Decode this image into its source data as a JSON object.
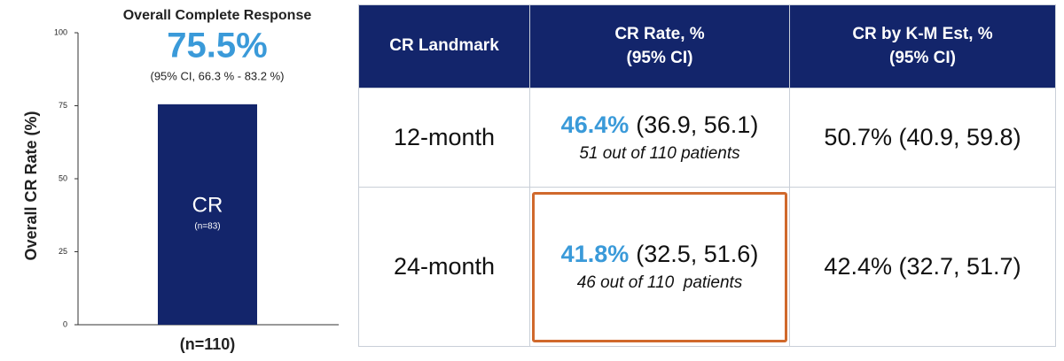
{
  "chart_data": {
    "type": "bar",
    "title": "Overall Complete Response",
    "subtitle": "(95% CI, 66.3 % - 83.2 %)",
    "y_label": "Overall CR Rate (%)",
    "categories": [
      "(n=110)"
    ],
    "values": [
      75.5
    ],
    "value_labels": [
      "75.5%"
    ],
    "bar_text": [
      "CR",
      "(n=83)"
    ],
    "color": "#13256b",
    "label_color": "#3a9ad9",
    "ylim": [
      0,
      100
    ],
    "yticks": [
      0,
      25,
      50,
      75,
      100
    ],
    "grid": false
  },
  "table": {
    "header": [
      "CR Landmark",
      "CR Rate, %\n(95% CI)",
      "CR by K-M Est, %\n(95% CI)"
    ],
    "rows": [
      {
        "landmark": "12-month",
        "cr_rate": {
          "value": "46.4%",
          "ci": "(36.9, 56.1)",
          "note": "51 out of 110 patients"
        },
        "km": "50.7% (40.9, 59.8)"
      },
      {
        "landmark": "24-month",
        "cr_rate": {
          "value": "41.8%",
          "ci": "(32.5, 51.6)",
          "note": "46 out of 110  patients"
        },
        "km": "42.4% (32.7, 51.7)"
      }
    ]
  }
}
